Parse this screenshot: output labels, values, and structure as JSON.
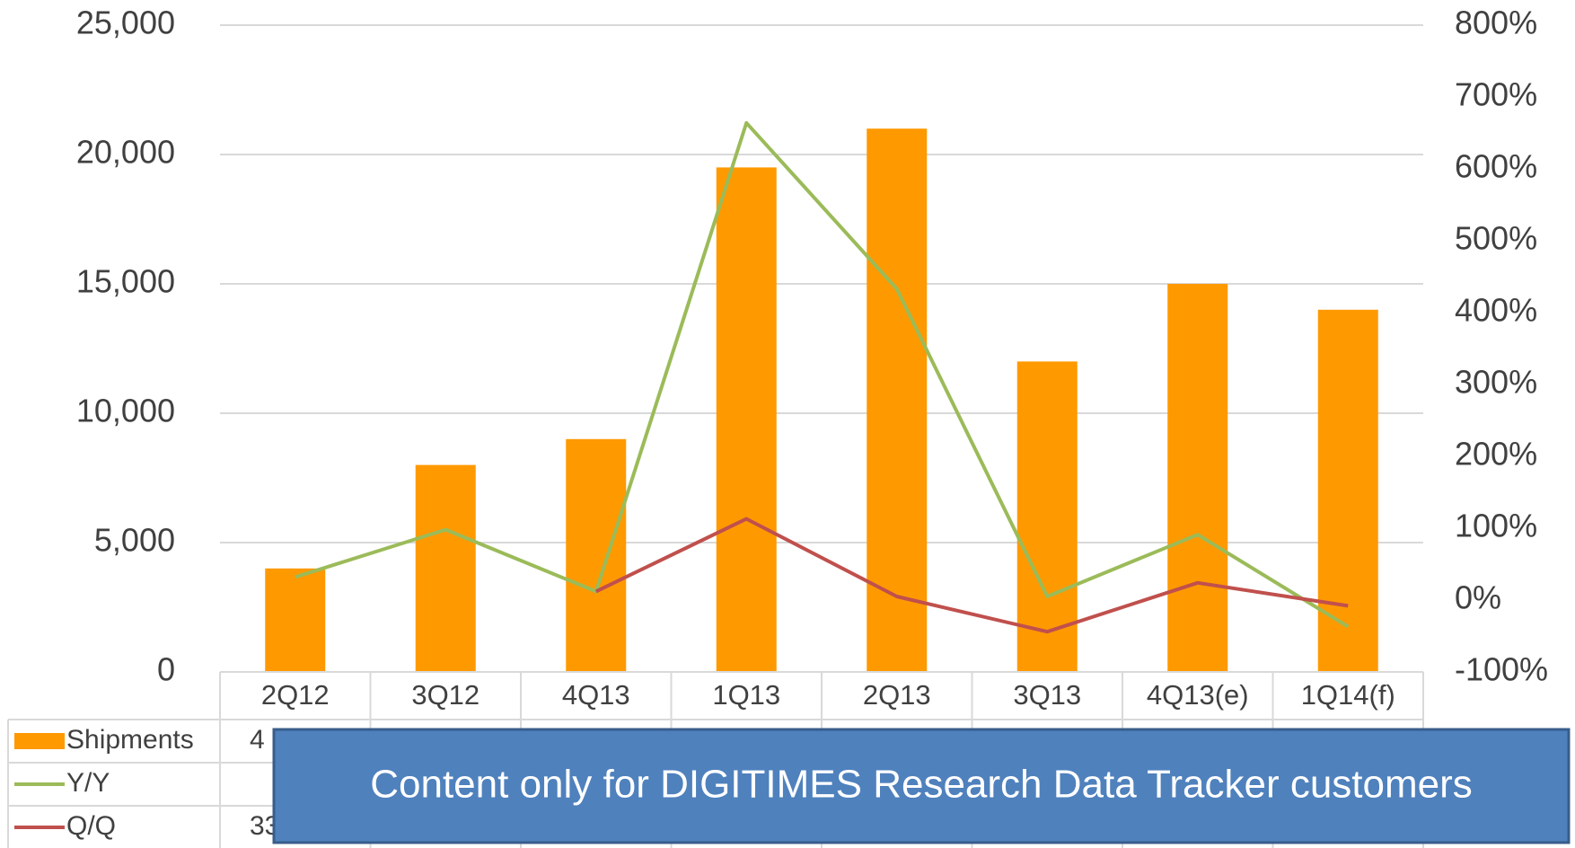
{
  "chart_data": {
    "type": "bar",
    "categories": [
      "2Q12",
      "3Q12",
      "4Q13",
      "1Q13",
      "2Q13",
      "3Q13",
      "4Q13(e)",
      "1Q14(f)"
    ],
    "series": [
      {
        "name": "Shipments",
        "color": "#ff9900",
        "type": "bar",
        "values": [
          4000,
          8000,
          9000,
          19500,
          21000,
          12000,
          15000,
          14000
        ],
        "table_visible": "4"
      },
      {
        "name": "Y/Y",
        "color": "#9bbb59",
        "type": "line",
        "axis": "y2",
        "values": [
          32,
          98,
          12,
          664,
          433,
          5,
          91,
          -37
        ]
      },
      {
        "name": "Q/Q",
        "color": "#c0504d",
        "type": "line",
        "axis": "y2",
        "values": [
          null,
          null,
          12,
          113,
          5,
          -44,
          24,
          -8
        ],
        "table_visible": "33"
      }
    ],
    "ylim": [
      0,
      25000
    ],
    "yticks": [
      {
        "value": 0,
        "label": "0"
      },
      {
        "value": 5000,
        "label": "5,000"
      },
      {
        "value": 10000,
        "label": "10,000"
      },
      {
        "value": 15000,
        "label": "15,000"
      },
      {
        "value": 20000,
        "label": "20,000"
      },
      {
        "value": 25000,
        "label": "25,000"
      }
    ],
    "y2lim": [
      -100,
      800
    ],
    "y2ticks": [
      {
        "value": -100,
        "label": "-100%"
      },
      {
        "value": 0,
        "label": "0%"
      },
      {
        "value": 100,
        "label": "100%"
      },
      {
        "value": 200,
        "label": "200%"
      },
      {
        "value": 300,
        "label": "300%"
      },
      {
        "value": 400,
        "label": "400%"
      },
      {
        "value": 500,
        "label": "500%"
      },
      {
        "value": 600,
        "label": "600%"
      },
      {
        "value": 700,
        "label": "700%"
      },
      {
        "value": 800,
        "label": "800%"
      }
    ],
    "grid": true,
    "overlay_text": "Content only for DIGITIMES Research Data Tracker customers"
  }
}
